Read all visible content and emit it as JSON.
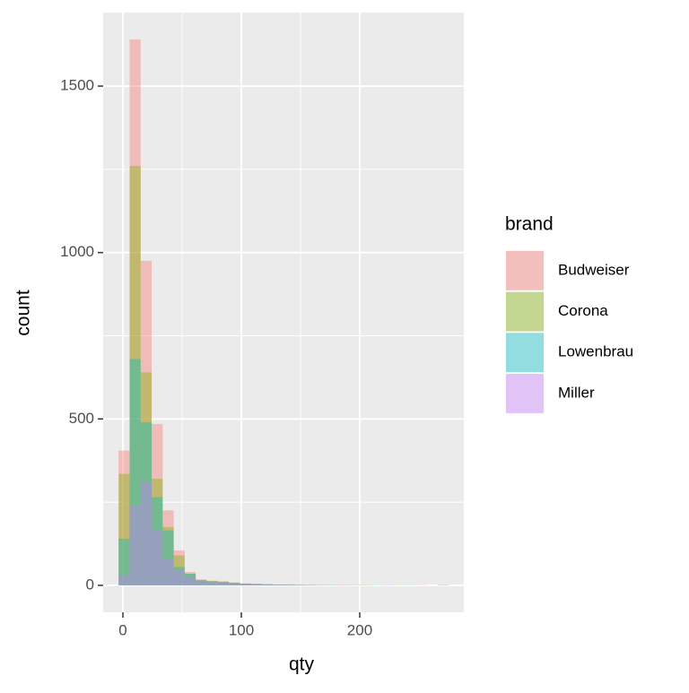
{
  "chart_data": {
    "type": "histogram",
    "x_label": "qty",
    "y_label": "count",
    "legend_title": "brand",
    "bins": [
      -3.65,
      5.65,
      14.95,
      24.25,
      33.55,
      42.85,
      52.15,
      61.45,
      70.75,
      80.05,
      89.35,
      98.65,
      107.95,
      117.25,
      126.55,
      135.85,
      145.15,
      154.45,
      163.75,
      173.05,
      182.35,
      191.65,
      200.95,
      210.25,
      219.55,
      228.85,
      238.15,
      247.45,
      256.75,
      266.05,
      275.35
    ],
    "series": [
      {
        "name": "Budweiser",
        "color": "#F8766D",
        "values": [
          405,
          1640,
          975,
          485,
          225,
          105,
          40,
          18,
          14,
          12,
          9,
          6,
          5,
          4,
          3,
          3,
          2,
          2,
          1,
          1,
          1,
          1,
          1,
          0,
          1,
          0,
          0,
          1,
          0,
          1
        ]
      },
      {
        "name": "Corona",
        "color": "#7CAE00",
        "values": [
          335,
          1260,
          640,
          320,
          175,
          90,
          35,
          16,
          13,
          11,
          8,
          5,
          4,
          3,
          2,
          2,
          2,
          1,
          1,
          1,
          1,
          0,
          1,
          0,
          0,
          1,
          0,
          0,
          0,
          1
        ]
      },
      {
        "name": "Lowenbrau",
        "color": "#00BFC4",
        "values": [
          140,
          680,
          490,
          265,
          165,
          55,
          35,
          15,
          12,
          10,
          7,
          5,
          4,
          3,
          2,
          2,
          1,
          1,
          1,
          1,
          0,
          1,
          0,
          1,
          0,
          0,
          1,
          0,
          0,
          0
        ]
      },
      {
        "name": "Miller",
        "color": "#C77CFF",
        "values": [
          30,
          240,
          310,
          165,
          80,
          45,
          25,
          12,
          10,
          8,
          6,
          4,
          3,
          2,
          2,
          1,
          1,
          1,
          1,
          0,
          1,
          0,
          0,
          0,
          1,
          0,
          0,
          0,
          0,
          1
        ]
      }
    ],
    "alpha": 0.4,
    "xlim": [
      -16.7,
      287.9
    ],
    "xticks": [
      0,
      100,
      200
    ],
    "ylim": [
      -81,
      1721
    ],
    "yticks": [
      0,
      500,
      1000,
      1500
    ],
    "grid": true,
    "legend": "right"
  }
}
